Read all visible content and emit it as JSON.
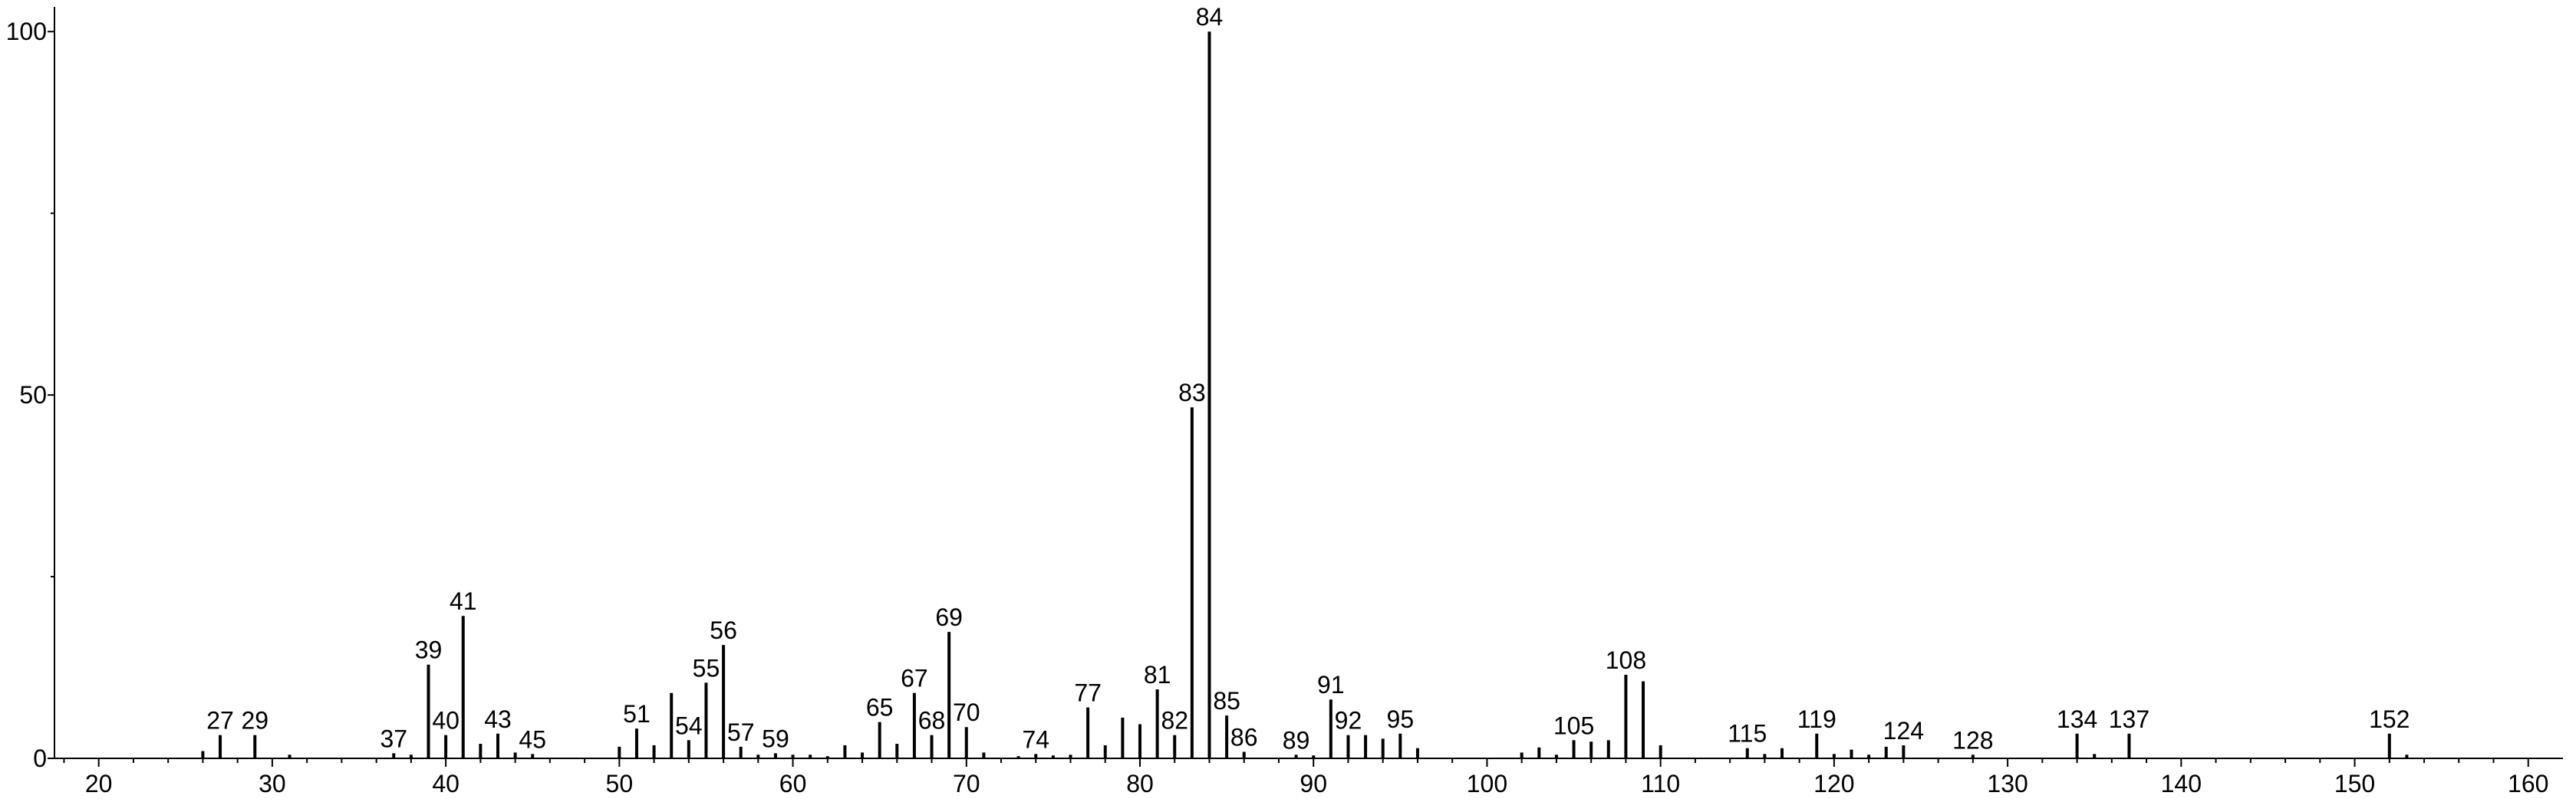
{
  "chart_data": {
    "type": "stem",
    "color": "#000000",
    "x": [
      26,
      27,
      29,
      31,
      37,
      38,
      39,
      40,
      41,
      42,
      43,
      44,
      45,
      50,
      51,
      52,
      53,
      54,
      55,
      56,
      57,
      58,
      59,
      60,
      61,
      62,
      63,
      64,
      65,
      66,
      67,
      68,
      69,
      70,
      71,
      73,
      74,
      75,
      76,
      77,
      78,
      79,
      80,
      81,
      82,
      83,
      84,
      85,
      86,
      89,
      90,
      91,
      92,
      93,
      94,
      95,
      96,
      102,
      103,
      104,
      105,
      106,
      107,
      108,
      109,
      110,
      115,
      116,
      117,
      119,
      120,
      121,
      122,
      123,
      124,
      128,
      134,
      135,
      137,
      152,
      153
    ],
    "values": [
      1,
      3.2,
      3.2,
      0.5,
      0.7,
      0.5,
      12.9,
      3.2,
      19.6,
      2,
      3.4,
      0.8,
      0.6,
      1.6,
      4.1,
      1.8,
      9,
      2.5,
      10.4,
      15.6,
      1.6,
      0.5,
      0.7,
      0.5,
      0.5,
      0.3,
      1.8,
      0.8,
      5,
      2,
      9,
      3.2,
      17.4,
      4.3,
      0.8,
      0.3,
      0.6,
      0.4,
      0.5,
      7,
      1.8,
      5.6,
      4.7,
      9.5,
      3.2,
      48.3,
      100,
      5.9,
      0.9,
      0.5,
      0.4,
      8.1,
      3.2,
      3.2,
      2.7,
      3.4,
      1.4,
      0.8,
      1.5,
      0.5,
      2.5,
      2.3,
      2.5,
      11.5,
      10.6,
      1.8,
      1.4,
      0.6,
      1.4,
      3.4,
      0.6,
      1.2,
      0.5,
      1.6,
      1.8,
      0.5,
      3.4,
      0.6,
      3.4,
      3.4,
      0.5
    ],
    "peak_labels": [
      27,
      29,
      37,
      39,
      40,
      41,
      43,
      45,
      51,
      54,
      55,
      56,
      57,
      59,
      65,
      67,
      68,
      69,
      70,
      74,
      77,
      81,
      82,
      83,
      84,
      85,
      86,
      89,
      91,
      92,
      95,
      105,
      108,
      115,
      119,
      124,
      128,
      134,
      137,
      152
    ],
    "xlim": [
      17.45,
      162
    ],
    "ylim": [
      0,
      103.4
    ],
    "xticks": [
      20,
      30,
      40,
      50,
      60,
      70,
      80,
      90,
      100,
      110,
      120,
      130,
      140,
      150,
      160
    ],
    "xminorticks": [
      18,
      22,
      24,
      26,
      28,
      32,
      34,
      36,
      38,
      42,
      44,
      46,
      48,
      52,
      54,
      56,
      58,
      62,
      64,
      66,
      68,
      72,
      74,
      76,
      78,
      82,
      84,
      86,
      88,
      92,
      94,
      96,
      98,
      102,
      104,
      106,
      108,
      112,
      114,
      116,
      118,
      122,
      124,
      126,
      128,
      132,
      134,
      136,
      138,
      142,
      144,
      146,
      148,
      152,
      154,
      156,
      158
    ],
    "yticks": [
      0,
      50,
      100
    ],
    "yminorticks": [
      25,
      75
    ]
  }
}
